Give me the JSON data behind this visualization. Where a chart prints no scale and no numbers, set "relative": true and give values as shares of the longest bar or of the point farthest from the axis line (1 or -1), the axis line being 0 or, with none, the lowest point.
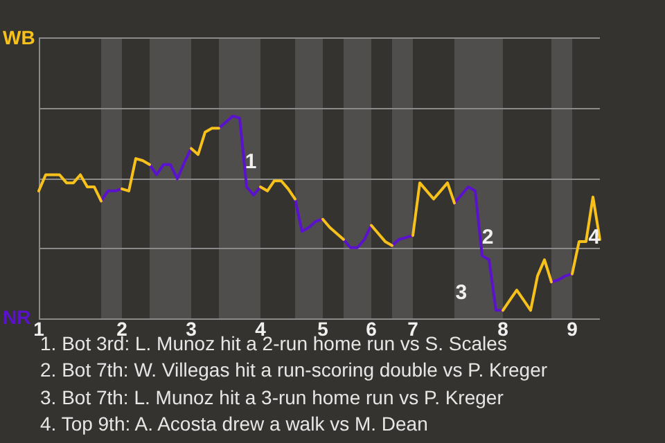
{
  "chart_data": {
    "type": "line",
    "relative": true,
    "categories": [
      "1",
      null,
      null,
      null,
      null,
      null,
      null,
      null,
      null,
      null,
      null,
      null,
      "2",
      null,
      null,
      null,
      null,
      null,
      null,
      null,
      null,
      null,
      "3",
      null,
      null,
      null,
      null,
      null,
      null,
      null,
      null,
      null,
      "4",
      null,
      null,
      null,
      null,
      null,
      null,
      null,
      null,
      "5",
      null,
      null,
      null,
      null,
      null,
      null,
      "6",
      null,
      null,
      null,
      null,
      null,
      "7",
      null,
      null,
      null,
      null,
      null,
      null,
      null,
      null,
      null,
      null,
      null,
      null,
      "8",
      null,
      null,
      null,
      null,
      null,
      null,
      null,
      null,
      null,
      "9",
      null,
      null,
      null,
      null
    ],
    "series": [
      {
        "color": "#f7c11c",
        "values": [
          0.63,
          0.71,
          0.71,
          0.71,
          0.67,
          0.67,
          0.71,
          0.65,
          0.65,
          0.58,
          null,
          null,
          0.64,
          0.63,
          0.79,
          0.78,
          0.76,
          null,
          null,
          null,
          null,
          null,
          0.84,
          0.81,
          0.92,
          0.94,
          0.94,
          null,
          null,
          null,
          null,
          null,
          0.65,
          0.63,
          0.68,
          0.68,
          0.64,
          0.59,
          null,
          null,
          null,
          0.49,
          0.45,
          0.42,
          0.39,
          null,
          null,
          null,
          0.46,
          0.42,
          0.38,
          0.36,
          null,
          null,
          0.41,
          0.67,
          0.63,
          0.59,
          0.63,
          0.67,
          0.57,
          null,
          null,
          null,
          null,
          null,
          null,
          0.04,
          0.09,
          0.14,
          0.09,
          0.04,
          0.21,
          0.29,
          0.18,
          null,
          null,
          0.22,
          0.38,
          0.38,
          0.6,
          0.39
        ]
      },
      {
        "color": "#5b12cc",
        "values": [
          null,
          null,
          null,
          null,
          null,
          null,
          null,
          null,
          null,
          0.58,
          0.63,
          0.63,
          0.64,
          null,
          null,
          null,
          0.76,
          0.71,
          0.76,
          0.76,
          0.69,
          0.77,
          0.84,
          null,
          null,
          null,
          0.94,
          0.97,
          1,
          0.99,
          0.65,
          0.61,
          0.65,
          null,
          null,
          null,
          null,
          0.59,
          0.43,
          0.45,
          0.48,
          0.49,
          null,
          null,
          0.39,
          0.35,
          0.35,
          0.39,
          0.46,
          null,
          null,
          0.36,
          0.39,
          0.4,
          0.41,
          null,
          null,
          null,
          null,
          null,
          0.57,
          0.61,
          0.65,
          0.63,
          0.31,
          0.29,
          0.04,
          0.04,
          null,
          null,
          null,
          null,
          null,
          null,
          0.18,
          0.19,
          0.21,
          0.22,
          null,
          null,
          null,
          null
        ]
      }
    ],
    "annotations": [
      "WB",
      "NR",
      "1. Bot 3rd: L. Munoz hit a 2-run home run vs S. Scales",
      "2. Bot 7th: W. Villegas hit a run-scoring double vs P. Kreger",
      "3. Bot 7th: L. Munoz hit a 3-run home run vs P. Kreger",
      "4. Top 9th: A. Acosta drew a walk vs M. Dean",
      "1",
      "2",
      "3",
      "4"
    ],
    "ref_lines": [
      {
        "axis": "y",
        "value": 0.35,
        "color": "#8a8a8a"
      },
      {
        "axis": "y",
        "value": 0.69,
        "color": "#8a8a8a"
      },
      {
        "axis": "y",
        "value": 1.04,
        "color": "#8a8a8a"
      }
    ],
    "legend": false,
    "marker": "none",
    "line_style": "solid"
  }
}
